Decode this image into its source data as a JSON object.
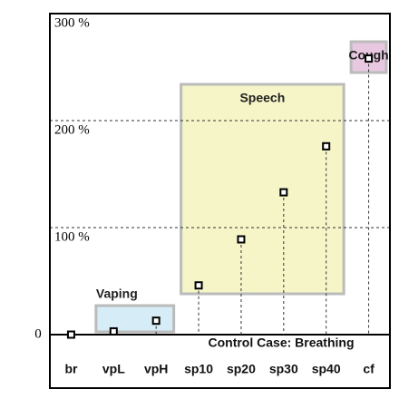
{
  "chart_data": {
    "type": "scatter",
    "categories": [
      "br",
      "vpL",
      "vpH",
      "sp10",
      "sp20",
      "sp30",
      "sp40",
      "cf"
    ],
    "values": [
      0,
      3,
      13,
      46,
      89,
      133,
      176,
      258
    ],
    "ylim": [
      -50,
      300
    ],
    "yticks": [
      0,
      {
        "value": 100,
        "label": "100 %"
      },
      {
        "value": 200,
        "label": "200 %"
      },
      {
        "value": 300,
        "label": "300 %"
      }
    ],
    "grid": true,
    "groups": [
      {
        "label": "Vaping",
        "color": "#d6ecf6"
      },
      {
        "label": "Speech",
        "color": "#f5f5c8"
      },
      {
        "label": "Cough",
        "color": "#e8c8e0"
      }
    ],
    "annotation": "Control Case:  Breathing"
  }
}
